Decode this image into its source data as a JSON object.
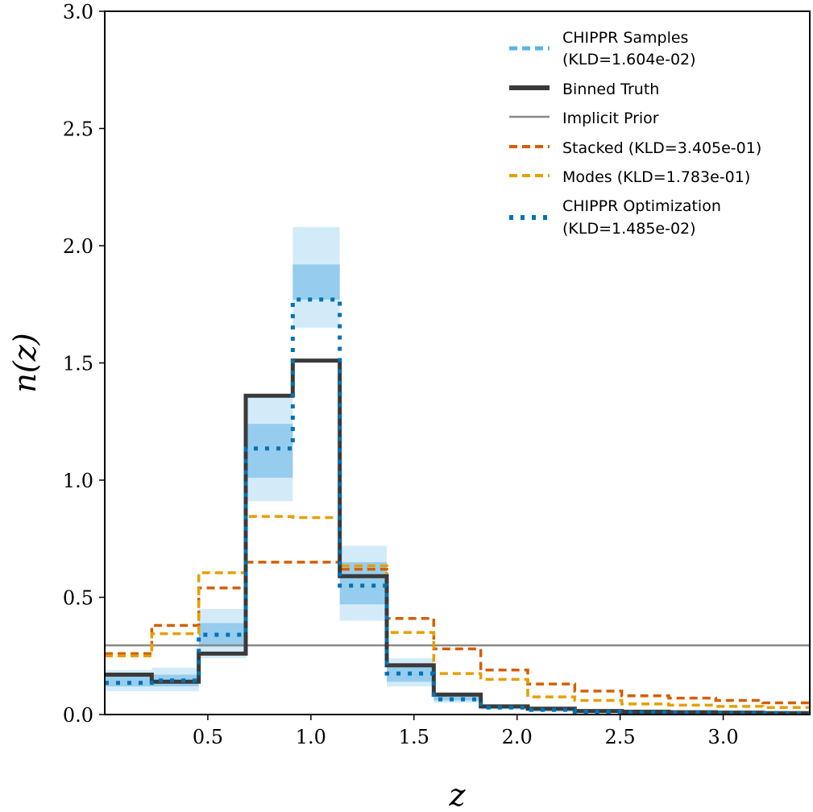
{
  "chart_data": {
    "type": "line",
    "step": true,
    "xlabel": "z",
    "ylabel": "n(z)",
    "xlim": [
      0.0,
      3.42
    ],
    "ylim": [
      0.0,
      3.0
    ],
    "xticks": [
      0.5,
      1.0,
      1.5,
      2.0,
      2.5,
      3.0
    ],
    "xtick_labels": [
      "0.5",
      "1.0",
      "1.5",
      "2.0",
      "2.5",
      "3.0"
    ],
    "yticks": [
      0.0,
      0.5,
      1.0,
      1.5,
      2.0,
      2.5,
      3.0
    ],
    "ytick_labels": [
      "0.0",
      "0.5",
      "1.0",
      "1.5",
      "2.0",
      "2.5",
      "3.0"
    ],
    "grid": false,
    "legend_position": "top-right",
    "bin_edges": [
      0.0,
      0.228,
      0.456,
      0.684,
      0.912,
      1.14,
      1.368,
      1.596,
      1.824,
      2.052,
      2.28,
      2.508,
      2.736,
      2.964,
      3.192,
      3.42
    ],
    "bands": {
      "outer_color": "#d3ebf9",
      "inner_color": "#96cdee",
      "outer": [
        [
          0.1,
          0.19
        ],
        [
          0.1,
          0.2
        ],
        [
          0.24,
          0.45
        ],
        [
          0.91,
          1.36
        ],
        [
          1.65,
          2.08
        ],
        [
          0.4,
          0.72
        ],
        [
          0.12,
          0.24
        ],
        [
          0.05,
          0.09
        ],
        [
          0.02,
          0.04
        ],
        [
          0.01,
          0.03
        ],
        [
          0.005,
          0.02
        ],
        [
          0.005,
          0.02
        ],
        [
          0.003,
          0.015
        ],
        [
          0.003,
          0.012
        ],
        [
          0.003,
          0.01
        ]
      ],
      "inner": [
        [
          0.12,
          0.17
        ],
        [
          0.12,
          0.17
        ],
        [
          0.29,
          0.39
        ],
        [
          1.01,
          1.24
        ],
        [
          1.77,
          1.92
        ],
        [
          0.47,
          0.65
        ],
        [
          0.14,
          0.21
        ],
        [
          0.06,
          0.08
        ],
        [
          0.025,
          0.035
        ],
        [
          0.015,
          0.025
        ],
        [
          0.008,
          0.015
        ],
        [
          0.008,
          0.014
        ],
        [
          0.006,
          0.012
        ],
        [
          0.005,
          0.01
        ],
        [
          0.005,
          0.009
        ]
      ]
    },
    "series": [
      {
        "name": "Binned Truth",
        "color": "#3a3a3a",
        "style": "solid",
        "values": [
          0.17,
          0.14,
          0.26,
          1.36,
          1.51,
          0.59,
          0.21,
          0.085,
          0.035,
          0.025,
          0.015,
          0.012,
          0.01,
          0.008,
          0.006
        ]
      },
      {
        "name": "Implicit Prior",
        "color": "#888888",
        "style": "solid",
        "values": [
          0.295,
          0.295,
          0.295,
          0.295,
          0.295,
          0.295,
          0.295,
          0.295,
          0.295,
          0.295,
          0.295,
          0.295,
          0.295,
          0.295,
          0.295
        ]
      },
      {
        "name": "Stacked (KLD=3.405e-01)",
        "color": "#d55e00",
        "style": "dashed",
        "values": [
          0.26,
          0.38,
          0.54,
          0.65,
          0.65,
          0.62,
          0.41,
          0.28,
          0.19,
          0.13,
          0.1,
          0.08,
          0.07,
          0.06,
          0.05
        ]
      },
      {
        "name": "Modes (KLD=1.783e-01)",
        "color": "#e69f00",
        "style": "dashed",
        "values": [
          0.25,
          0.345,
          0.605,
          0.845,
          0.84,
          0.635,
          0.35,
          0.175,
          0.15,
          0.075,
          0.06,
          0.045,
          0.04,
          0.035,
          0.03
        ]
      },
      {
        "name": "CHIPPR Optimization (KLD=1.485e-02)",
        "color": "#0072b2",
        "style": "dotted",
        "values": [
          0.135,
          0.145,
          0.34,
          1.135,
          1.77,
          0.55,
          0.175,
          0.065,
          0.03,
          0.02,
          0.012,
          0.01,
          0.008,
          0.007,
          0.006
        ]
      }
    ],
    "legend": [
      {
        "line1": "CHIPPR Samples",
        "line2": "(KLD=1.604e-02)",
        "color": "#56b4e9",
        "style": "dashed",
        "width": 5
      },
      {
        "line1": "Binned Truth",
        "line2": "",
        "color": "#3a3a3a",
        "style": "solid",
        "width": 6
      },
      {
        "line1": "Implicit Prior",
        "line2": "",
        "color": "#888888",
        "style": "solid",
        "width": 2.5
      },
      {
        "line1": "Stacked (KLD=3.405e-01)",
        "line2": "",
        "color": "#d55e00",
        "style": "dashed",
        "width": 4
      },
      {
        "line1": "Modes (KLD=1.783e-01)",
        "line2": "",
        "color": "#e69f00",
        "style": "dashed",
        "width": 4
      },
      {
        "line1": "CHIPPR Optimization",
        "line2": "(KLD=1.485e-02)",
        "color": "#0072b2",
        "style": "dotted",
        "width": 6
      }
    ]
  }
}
